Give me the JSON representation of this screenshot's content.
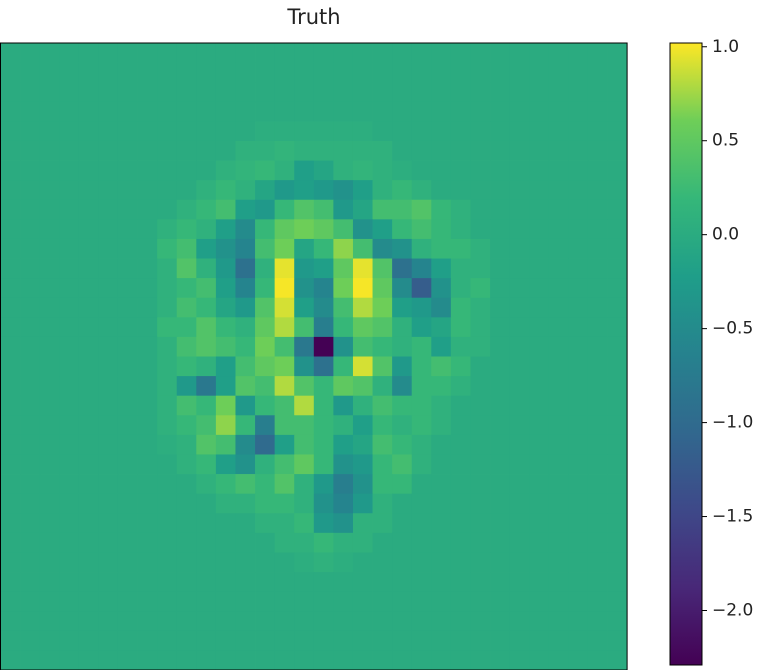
{
  "chart_data": {
    "type": "heatmap",
    "title": "Truth",
    "colormap": "viridis",
    "clim": [
      -2.29,
      1.02
    ],
    "cticks": [
      {
        "value": 1,
        "label": "1.0"
      },
      0.5,
      {
        "value": 0,
        "label": "0.0"
      },
      {
        "value": -0.5,
        "label": "−0.5"
      },
      {
        "value": -1,
        "label": "−1.0"
      },
      {
        "value": -1.5,
        "label": "−1.5"
      },
      {
        "value": -2,
        "label": "−2.0"
      }
    ],
    "z": [
      [
        0,
        0,
        0,
        0,
        0,
        0,
        0,
        0,
        0,
        0,
        0,
        0,
        0,
        0,
        0,
        0,
        0,
        0,
        0,
        0,
        0,
        0,
        0,
        0,
        0,
        0,
        0,
        0,
        0,
        0,
        0,
        0
      ],
      [
        0,
        0,
        0,
        0,
        0,
        0,
        0,
        0,
        0,
        0,
        0,
        0,
        0,
        0,
        0,
        0,
        0,
        0,
        0,
        0,
        0,
        0,
        0,
        0,
        0,
        0,
        0,
        0,
        0,
        0,
        0,
        0
      ],
      [
        0,
        0,
        0,
        0,
        0,
        0,
        0,
        0,
        0,
        0,
        0,
        0,
        0,
        0,
        0,
        0,
        0,
        0,
        0,
        0,
        0,
        0,
        0,
        0,
        0,
        0,
        0,
        0,
        0,
        0,
        0,
        0
      ],
      [
        0,
        0,
        0,
        0,
        0,
        0,
        0,
        0,
        0,
        0,
        0,
        0,
        0,
        0,
        0,
        0,
        0,
        0,
        0,
        0,
        0,
        0,
        0,
        0,
        0,
        0,
        0,
        0,
        0,
        0,
        0,
        0
      ],
      [
        0,
        0,
        0,
        0,
        0,
        0,
        0,
        0,
        0,
        0,
        0,
        0,
        0,
        0.05,
        0.05,
        0.05,
        0.05,
        0.05,
        0.05,
        0,
        0,
        0,
        0,
        0,
        0,
        0,
        0,
        0,
        0,
        0,
        0,
        0
      ],
      [
        0,
        0,
        0,
        0,
        0,
        0,
        0,
        0,
        0,
        0,
        0,
        0,
        0.1,
        0.1,
        0.15,
        0.1,
        0.1,
        0.1,
        0.1,
        0.1,
        0,
        0,
        0,
        0,
        0,
        0,
        0,
        0,
        0,
        0,
        0,
        0
      ],
      [
        0,
        0,
        0,
        0,
        0,
        0,
        0,
        0,
        0,
        0,
        0,
        0.1,
        0.15,
        0.2,
        0.1,
        -0.2,
        -0.1,
        0.1,
        0.15,
        0.1,
        0.05,
        0,
        0,
        0,
        0,
        0,
        0,
        0,
        0,
        0,
        0,
        0
      ],
      [
        0,
        0,
        0,
        0,
        0,
        0,
        0,
        0,
        0,
        0,
        0.1,
        0.2,
        0.1,
        -0.1,
        -0.3,
        -0.2,
        -0.3,
        -0.4,
        -0.2,
        0.1,
        0.2,
        0.1,
        0,
        0,
        0,
        0,
        0,
        0,
        0,
        0,
        0,
        0
      ],
      [
        0,
        0,
        0,
        0,
        0,
        0,
        0,
        0,
        0,
        0.1,
        0.2,
        0.3,
        -0.2,
        -0.3,
        0.2,
        0.4,
        0.3,
        -0.3,
        -0.1,
        0.3,
        0.3,
        0.4,
        0.2,
        0.1,
        0,
        0,
        0,
        0,
        0,
        0,
        0,
        0
      ],
      [
        0,
        0,
        0,
        0,
        0,
        0,
        0,
        0,
        0.1,
        0.2,
        0.1,
        -0.2,
        -0.5,
        0.2,
        0.5,
        0.6,
        0.5,
        0.3,
        -0.4,
        -0.2,
        0.2,
        0.3,
        0.2,
        0.1,
        0,
        0,
        0,
        0,
        0,
        0,
        0,
        0
      ],
      [
        0,
        0,
        0,
        0,
        0,
        0,
        0,
        0,
        0.2,
        0.3,
        -0.2,
        -0.4,
        -0.6,
        0.3,
        0.6,
        -0.1,
        0.2,
        0.7,
        0.3,
        -0.5,
        -0.4,
        0.1,
        0.2,
        0.2,
        0.1,
        0,
        0,
        0,
        0,
        0,
        0,
        0
      ],
      [
        0,
        0,
        0,
        0,
        0,
        0,
        0,
        0,
        0.1,
        0.4,
        0.1,
        -0.3,
        -0.9,
        0.1,
        0.95,
        -0.3,
        -0.2,
        0.5,
        0.95,
        0.4,
        -0.9,
        -0.6,
        -0.2,
        0.1,
        0.1,
        0,
        0,
        0,
        0,
        0,
        0,
        0
      ],
      [
        0,
        0,
        0,
        0,
        0,
        0,
        0,
        0,
        0.1,
        0.2,
        0.3,
        -0.2,
        -0.6,
        0.2,
        1.0,
        -0.4,
        -0.6,
        0.6,
        1.0,
        0.5,
        -0.5,
        -1.2,
        -0.4,
        0.1,
        0.2,
        0,
        0,
        0,
        0,
        0,
        0,
        0
      ],
      [
        0,
        0,
        0,
        0,
        0,
        0,
        0,
        0,
        0.1,
        0.3,
        0.2,
        -0.1,
        -0.3,
        0.4,
        0.9,
        -0.2,
        -0.5,
        0.3,
        0.8,
        0.6,
        -0.2,
        -0.3,
        -0.5,
        0.2,
        0.1,
        0,
        0,
        0,
        0,
        0,
        0,
        0
      ],
      [
        0,
        0,
        0,
        0,
        0,
        0,
        0,
        0,
        0.2,
        0.2,
        0.4,
        0.2,
        0.1,
        0.5,
        0.8,
        0.3,
        -0.7,
        0.2,
        0.5,
        0.4,
        0.1,
        -0.2,
        -0.1,
        0.2,
        0.1,
        0,
        0,
        0,
        0,
        0,
        0,
        0
      ],
      [
        0,
        0,
        0,
        0,
        0,
        0,
        0,
        0,
        0.1,
        0.3,
        0.4,
        0.3,
        0.2,
        0.6,
        0.3,
        -0.8,
        -2.29,
        -0.4,
        0.3,
        0.2,
        0.1,
        0.2,
        -0.2,
        0.1,
        0.1,
        0,
        0,
        0,
        0,
        0,
        0,
        0
      ],
      [
        0,
        0,
        0,
        0,
        0,
        0,
        0,
        0,
        0.1,
        0.2,
        0.1,
        -0.2,
        0.3,
        0.5,
        0.6,
        -0.4,
        -0.9,
        0.2,
        0.9,
        0.4,
        -0.3,
        0.2,
        0.3,
        0.2,
        0,
        0,
        0,
        0,
        0,
        0,
        0,
        0
      ],
      [
        0,
        0,
        0,
        0,
        0,
        0,
        0,
        0,
        0.1,
        -0.3,
        -0.8,
        -0.2,
        0.4,
        0.3,
        0.8,
        0.4,
        0.2,
        0.5,
        0.4,
        0.1,
        -0.5,
        0.2,
        0.2,
        0.1,
        0,
        0,
        0,
        0,
        0,
        0,
        0,
        0
      ],
      [
        0,
        0,
        0,
        0,
        0,
        0,
        0,
        0,
        0.1,
        0.3,
        0.2,
        0.6,
        -0.3,
        0.2,
        0.3,
        0.8,
        0.2,
        -0.3,
        0.1,
        0.3,
        0.2,
        0.2,
        0.1,
        0,
        0,
        0,
        0,
        0,
        0,
        0,
        0,
        0
      ],
      [
        0,
        0,
        0,
        0,
        0,
        0,
        0,
        0,
        0.1,
        0.2,
        0.3,
        0.7,
        0.2,
        -0.7,
        0.3,
        0.3,
        0.2,
        0.1,
        -0.2,
        0.2,
        0.1,
        0.2,
        0.1,
        0,
        0,
        0,
        0,
        0,
        0,
        0,
        0,
        0
      ],
      [
        0,
        0,
        0,
        0,
        0,
        0,
        0,
        0,
        0.05,
        0.1,
        0.4,
        0.3,
        -0.5,
        -1.0,
        -0.2,
        0.3,
        0.2,
        -0.2,
        -0.1,
        0.3,
        0.2,
        0.1,
        0,
        0,
        0,
        0,
        0,
        0,
        0,
        0,
        0,
        0
      ],
      [
        0,
        0,
        0,
        0,
        0,
        0,
        0,
        0,
        0,
        0.1,
        0.2,
        -0.2,
        -0.4,
        0.1,
        0.3,
        0.5,
        0.2,
        -0.4,
        -0.3,
        0.2,
        0.3,
        0.1,
        0,
        0,
        0,
        0,
        0,
        0,
        0,
        0,
        0,
        0
      ],
      [
        0,
        0,
        0,
        0,
        0,
        0,
        0,
        0,
        0,
        0,
        0.1,
        0.2,
        0.3,
        0.2,
        0.4,
        0.1,
        -0.3,
        -0.7,
        -0.4,
        0.2,
        0.2,
        0,
        0,
        0,
        0,
        0,
        0,
        0,
        0,
        0,
        0,
        0
      ],
      [
        0,
        0,
        0,
        0,
        0,
        0,
        0,
        0,
        0,
        0,
        0,
        0.1,
        0.1,
        0.2,
        0.2,
        0.1,
        -0.4,
        -0.6,
        -0.3,
        0.1,
        0,
        0,
        0,
        0,
        0,
        0,
        0,
        0,
        0,
        0,
        0,
        0
      ],
      [
        0,
        0,
        0,
        0,
        0,
        0,
        0,
        0,
        0,
        0,
        0,
        0,
        0,
        0.1,
        0.1,
        0.2,
        -0.3,
        -0.4,
        0.1,
        0.1,
        0,
        0,
        0,
        0,
        0,
        0,
        0,
        0,
        0,
        0,
        0,
        0
      ],
      [
        0,
        0,
        0,
        0,
        0,
        0,
        0,
        0,
        0,
        0,
        0,
        0,
        0,
        0,
        0.1,
        0.1,
        0.2,
        0.1,
        0.1,
        0,
        0,
        0,
        0,
        0,
        0,
        0,
        0,
        0,
        0,
        0,
        0,
        0
      ],
      [
        0,
        0,
        0,
        0,
        0,
        0,
        0,
        0,
        0,
        0,
        0,
        0,
        0,
        0,
        0,
        0.05,
        0.1,
        0.05,
        0,
        0,
        0,
        0,
        0,
        0,
        0,
        0,
        0,
        0,
        0,
        0,
        0,
        0
      ],
      [
        0,
        0,
        0,
        0,
        0,
        0,
        0,
        0,
        0,
        0,
        0,
        0,
        0,
        0,
        0,
        0,
        0,
        0,
        0,
        0,
        0,
        0,
        0,
        0,
        0,
        0,
        0,
        0,
        0,
        0,
        0,
        0
      ],
      [
        0,
        0,
        0,
        0,
        0,
        0,
        0,
        0,
        0,
        0,
        0,
        0,
        0,
        0,
        0,
        0,
        0,
        0,
        0,
        0,
        0,
        0,
        0,
        0,
        0,
        0,
        0,
        0,
        0,
        0,
        0,
        0
      ],
      [
        0,
        0,
        0,
        0,
        0,
        0,
        0,
        0,
        0,
        0,
        0,
        0,
        0,
        0,
        0,
        0,
        0,
        0,
        0,
        0,
        0,
        0,
        0,
        0,
        0,
        0,
        0,
        0,
        0,
        0,
        0,
        0
      ],
      [
        0,
        0,
        0,
        0,
        0,
        0,
        0,
        0,
        0,
        0,
        0,
        0,
        0,
        0,
        0,
        0,
        0,
        0,
        0,
        0,
        0,
        0,
        0,
        0,
        0,
        0,
        0,
        0,
        0,
        0,
        0,
        0
      ],
      [
        0,
        0,
        0,
        0,
        0,
        0,
        0,
        0,
        0,
        0,
        0,
        0,
        0,
        0,
        0,
        0,
        0,
        0,
        0,
        0,
        0,
        0,
        0,
        0,
        0,
        0,
        0,
        0,
        0,
        0,
        0,
        0
      ]
    ]
  }
}
